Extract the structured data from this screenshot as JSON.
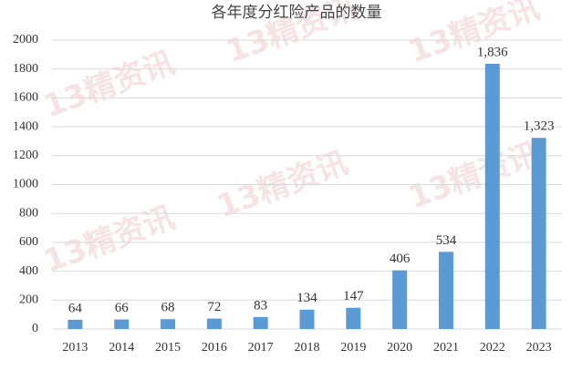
{
  "chart_data": {
    "type": "bar",
    "title": "各年度分红险产品的数量",
    "categories": [
      "2013",
      "2014",
      "2015",
      "2016",
      "2017",
      "2018",
      "2019",
      "2020",
      "2021",
      "2022",
      "2023"
    ],
    "values": [
      64,
      66,
      68,
      72,
      83,
      134,
      147,
      406,
      534,
      1836,
      1323
    ],
    "value_labels": [
      "64",
      "66",
      "68",
      "72",
      "83",
      "134",
      "147",
      "406",
      "534",
      "1,836",
      "1,323"
    ],
    "color": "#5b9bd5",
    "ylim": [
      0,
      2000
    ],
    "yticks": [
      0,
      200,
      400,
      600,
      800,
      1000,
      1200,
      1400,
      1600,
      1800,
      2000
    ],
    "grid": true,
    "watermark": "13精资讯"
  }
}
